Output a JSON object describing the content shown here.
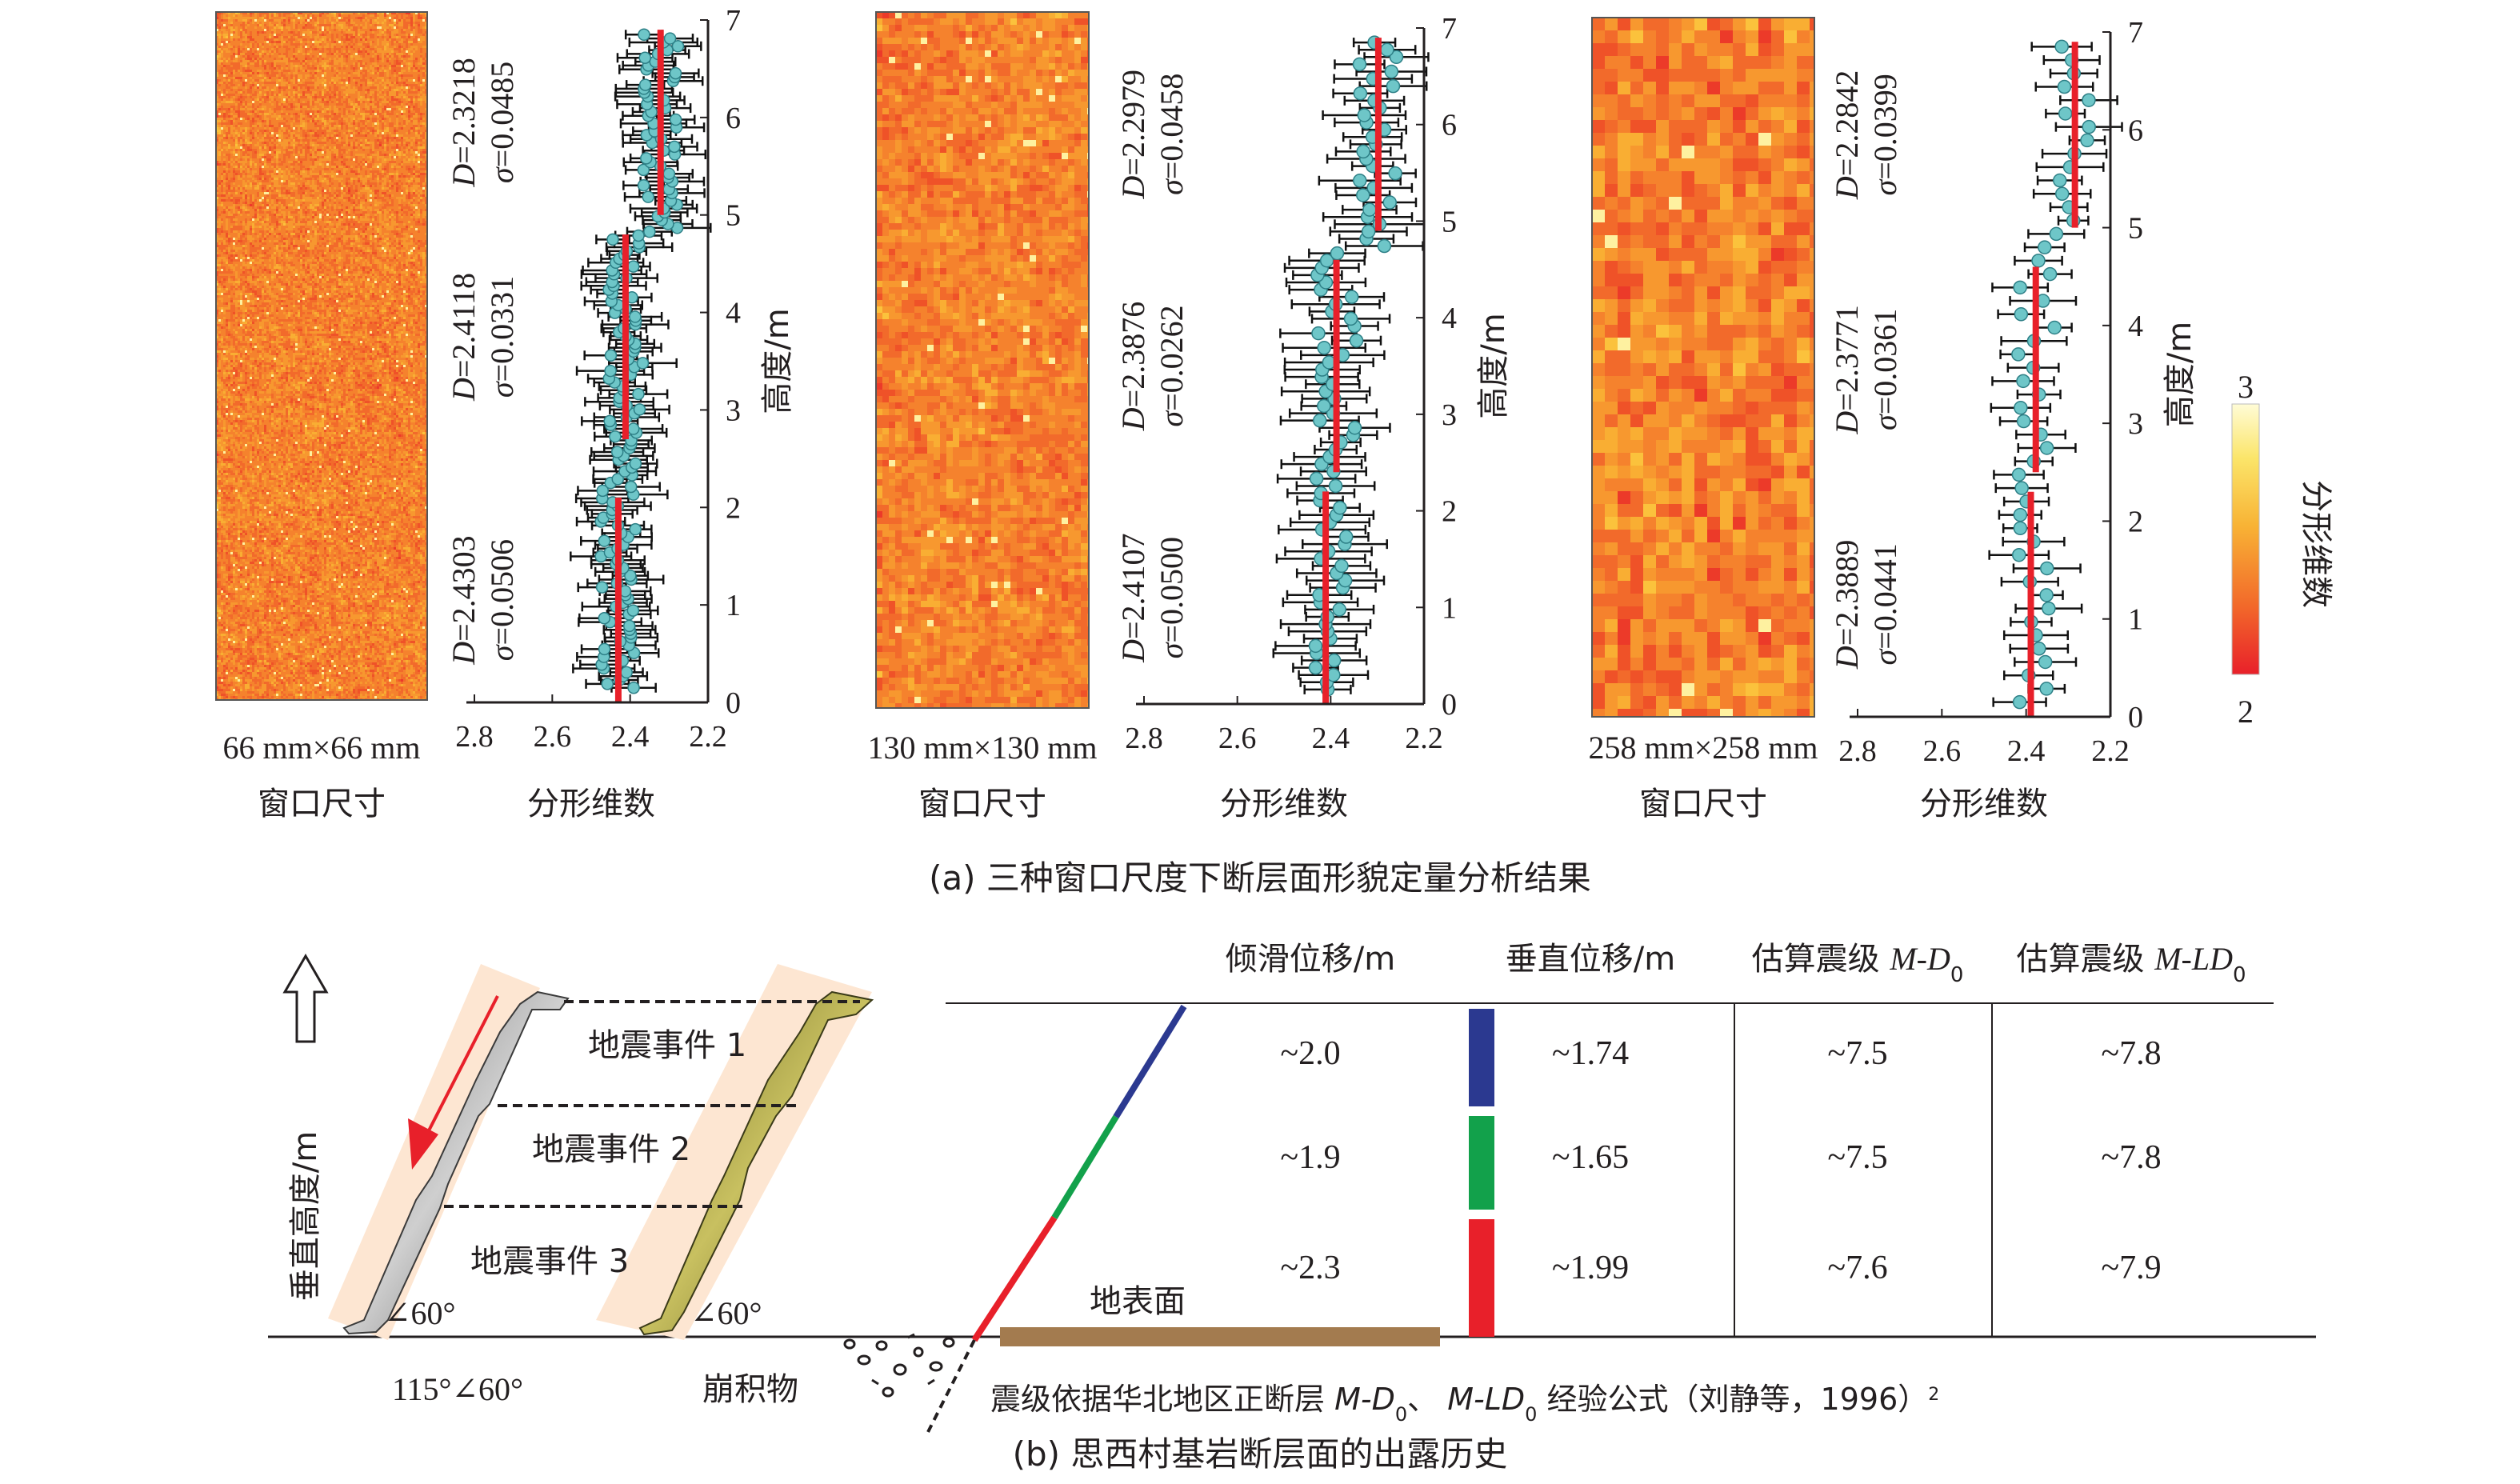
{
  "part_a": {
    "caption": "(a) 三种窗口尺度下断层面形貌定量分析结果",
    "panels": [
      {
        "window_size": "66 mm×66 mm",
        "window_label": "窗口尺寸",
        "map_style": "fine",
        "segments": [
          {
            "D_label": "D",
            "D_value": "=2.4303",
            "sigma_label": "σ",
            "sigma_value": "=0.0506",
            "D": 2.4303,
            "y_range": [
              0.0,
              2.1
            ]
          },
          {
            "D_label": "D",
            "D_value": "=2.4118",
            "sigma_label": "σ",
            "sigma_value": "=0.0331",
            "D": 2.4118,
            "y_range": [
              2.7,
              4.8
            ]
          },
          {
            "D_label": "D",
            "D_value": "=2.3218",
            "sigma_label": "σ",
            "sigma_value": "=0.0485",
            "D": 2.3218,
            "y_range": [
              5.0,
              6.9
            ]
          }
        ]
      },
      {
        "window_size": "130 mm×130 mm",
        "window_label": "窗口尺寸",
        "map_style": "medium",
        "segments": [
          {
            "D_label": "D",
            "D_value": "=2.4107",
            "sigma_label": "σ",
            "sigma_value": "=0.0500",
            "D": 2.4107,
            "y_range": [
              0.0,
              2.2
            ]
          },
          {
            "D_label": "D",
            "D_value": "=2.3876",
            "sigma_label": "σ",
            "sigma_value": "=0.0262",
            "D": 2.3876,
            "y_range": [
              2.4,
              4.6
            ]
          },
          {
            "D_label": "D",
            "D_value": "=2.2979",
            "sigma_label": "σ",
            "sigma_value": "=0.0458",
            "D": 2.2979,
            "y_range": [
              4.9,
              6.9
            ]
          }
        ]
      },
      {
        "window_size": "258 mm×258 mm",
        "window_label": "窗口尺寸",
        "map_style": "coarse",
        "segments": [
          {
            "D_label": "D",
            "D_value": "=2.3889",
            "sigma_label": "σ",
            "sigma_value": "=0.0441",
            "D": 2.3889,
            "y_range": [
              0.0,
              2.3
            ]
          },
          {
            "D_label": "D",
            "D_value": "=2.3771",
            "sigma_label": "σ",
            "sigma_value": "=0.0361",
            "D": 2.3771,
            "y_range": [
              2.5,
              4.6
            ]
          },
          {
            "D_label": "D",
            "D_value": "=2.2842",
            "sigma_label": "σ",
            "sigma_value": "=0.0399",
            "D": 2.2842,
            "y_range": [
              5.0,
              6.9
            ]
          }
        ]
      }
    ],
    "x_axis_label": "分形维数",
    "x_ticks": [
      "2.8",
      "2.6",
      "2.4",
      "2.2"
    ],
    "y_axis_label": "高度/m",
    "y_ticks": [
      "0",
      "1",
      "2",
      "3",
      "4",
      "5",
      "6",
      "7"
    ],
    "colorbar": {
      "label": "分形维数",
      "max": "3",
      "min": "2"
    },
    "colors": {
      "fit_line": "#e8202a",
      "points": "#6ec6c8",
      "error_bars": "#111111"
    }
  },
  "part_b": {
    "caption": "(b) 思西村基岩断层面的出露历史",
    "vertical_axis_label": "垂直高度/m",
    "events": [
      "地震事件 1",
      "地震事件 2",
      "地震事件 3"
    ],
    "angle_left": "∠60°",
    "angle_right": "∠60°",
    "orientation": "115°∠60°",
    "colluvium": "崩积物",
    "ground_surface": "地表面",
    "table": {
      "headers": [
        {
          "main": "倾滑位移/m"
        },
        {
          "main": "垂直位移/m"
        },
        {
          "main": "估算震级 ",
          "italic": "M-D",
          "sub": "0"
        },
        {
          "main": "估算震级 ",
          "italic": "M-LD",
          "sub": "0"
        }
      ],
      "rows": [
        {
          "color": "#2b3990",
          "slip": "~2.0",
          "vertical": "~1.74",
          "m_d0": "~7.5",
          "m_ld0": "~7.8"
        },
        {
          "color": "#12a14b",
          "slip": "~1.9",
          "vertical": "~1.65",
          "m_d0": "~7.5",
          "m_ld0": "~7.8"
        },
        {
          "color": "#e8202a",
          "slip": "~2.3",
          "vertical": "~1.99",
          "m_d0": "~7.6",
          "m_ld0": "~7.9"
        }
      ]
    },
    "note": {
      "prefix": "震级依据华北地区正断层 ",
      "f1_italic": "M-D",
      "f1_sub": "0",
      "mid": "、 ",
      "f2_italic": "M-LD",
      "f2_sub": "0",
      "suffix": " 经验公式（刘静等，1996）",
      "sup": "2"
    },
    "colors": {
      "ground_bar": "#a37b4f",
      "scan_glow": "#fde6d2",
      "arrow": "#e8202a"
    }
  }
}
